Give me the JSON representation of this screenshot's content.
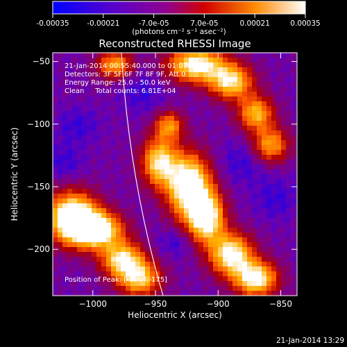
{
  "colorbar": {
    "ticks": [
      "-0.00035",
      "-0.00021",
      "-7.0e-05",
      "7.0e-05",
      "0.00021",
      "0.00035"
    ],
    "tick_values": [
      -0.00035,
      -0.00021,
      -7e-05,
      7e-05,
      0.00021,
      0.00035
    ],
    "range": [
      -0.00035,
      0.00035
    ],
    "unit_label": "(photons cm⁻² s⁻¹ asec⁻²)"
  },
  "chart_data": {
    "type": "heatmap",
    "title": "Reconstructed RHESSI Image",
    "xlabel": "Heliocentric X (arcsec)",
    "ylabel": "Heliocentric Y (arcsec)",
    "xlim": [
      -1032,
      -837
    ],
    "ylim": [
      -237,
      -43
    ],
    "xticks": [
      -1000,
      -950,
      -900,
      -850
    ],
    "yticks": [
      -200,
      -150,
      -100,
      -50
    ],
    "xtick_labels": [
      "−1000",
      "−950",
      "−900",
      "−850"
    ],
    "ytick_labels": [
      "−200",
      "−150",
      "−100",
      "−50"
    ],
    "annotations": [
      "21-Jan-2014 00:55:40.000 to 01:07:08.000",
      "Detectors: 3F 5F 6F 7F 8F 9F, Att 0",
      "Energy Range: 25.0 - 50.0 keV",
      "Clean     Total counts: 6.81E+04"
    ],
    "peak_label": "Position of Peak: [-1004,-175]",
    "peak": [
      -1004,
      -175
    ],
    "colormap": [
      "#0000ff",
      "#6a00b0",
      "#b00000",
      "#ff5a00",
      "#ffb000",
      "#ffffff"
    ],
    "grid": false
  },
  "footer_timestamp": "21-Jan-2014 13:29"
}
